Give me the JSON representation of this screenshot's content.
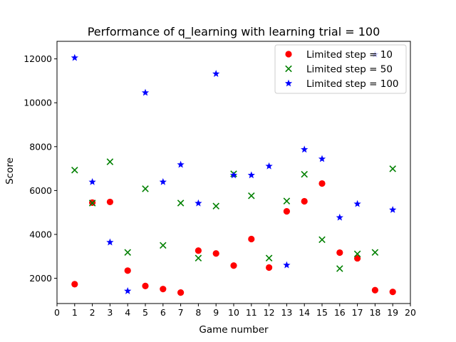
{
  "chart_data": {
    "type": "scatter",
    "title": "Performance of q_learning with learning trial = 100",
    "xlabel": "Game number",
    "ylabel": "Score",
    "xlim": [
      0,
      20
    ],
    "ylim": [
      850,
      12800
    ],
    "xticks": [
      0,
      1,
      2,
      3,
      4,
      5,
      6,
      7,
      8,
      9,
      10,
      11,
      12,
      13,
      14,
      15,
      16,
      17,
      18,
      19,
      20
    ],
    "yticks": [
      2000,
      4000,
      6000,
      8000,
      10000,
      12000
    ],
    "legend_position": "top-right",
    "grid": false,
    "x": [
      1,
      2,
      3,
      4,
      5,
      6,
      7,
      8,
      9,
      10,
      11,
      12,
      13,
      14,
      15,
      16,
      17,
      18,
      19
    ],
    "series": [
      {
        "name": "Limited step = 10",
        "marker": "circle",
        "color": "#ff0000",
        "values": [
          1730,
          5450,
          5480,
          2350,
          1650,
          1510,
          1350,
          3260,
          3130,
          2580,
          3790,
          2490,
          5050,
          5510,
          6320,
          3170,
          2910,
          1460,
          1380
        ]
      },
      {
        "name": "Limited step = 50",
        "marker": "x",
        "color": "#008000",
        "values": [
          6930,
          5430,
          7310,
          3180,
          6080,
          3500,
          5430,
          2920,
          5290,
          6760,
          5760,
          2920,
          5520,
          6740,
          3760,
          2440,
          3110,
          3180,
          6990
        ]
      },
      {
        "name": "Limited step = 100",
        "marker": "star",
        "color": "#0000ff",
        "values": [
          12050,
          6390,
          3640,
          1420,
          10460,
          6390,
          7180,
          5420,
          11320,
          6700,
          6700,
          7110,
          2600,
          7870,
          7440,
          4770,
          5390,
          12200,
          5120
        ]
      }
    ]
  }
}
